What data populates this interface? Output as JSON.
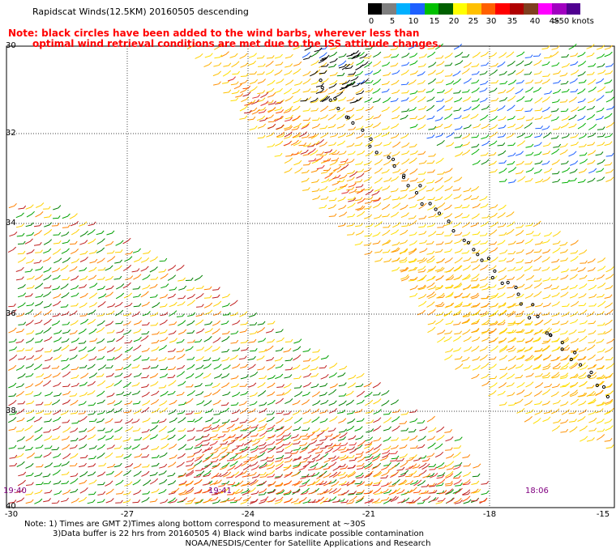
{
  "header": {
    "title": "Rapidscat Winds(12.5KM) 20160505 descending",
    "note_line1": "Note: black circles have been added to the wind barbs, wherever less than",
    "note_line2": "optimal wind retrieval conditions are met due to the ISS attitude changes."
  },
  "legend": {
    "colors": [
      "#000000",
      "#7f7f7f",
      "#00b0ff",
      "#1e60ff",
      "#00c000",
      "#006000",
      "#ffff00",
      "#ffc000",
      "#ff6000",
      "#ff0000",
      "#b00000",
      "#7f3f1f",
      "#ff00ff",
      "#a000c0",
      "#500090"
    ],
    "labels": [
      "0",
      "5",
      "10",
      "15",
      "20",
      "25",
      "30",
      "35",
      "40",
      "45",
      ">50 knots"
    ]
  },
  "axes": {
    "lat_labels": [
      "30",
      "32",
      "34",
      "36",
      "38",
      "40"
    ],
    "lon_labels": [
      "-30",
      "-27",
      "-24",
      "-21",
      "-18",
      "-15"
    ]
  },
  "time_labels": [
    "19:40",
    "19:41",
    "18:06"
  ],
  "footer": {
    "line1": "Note: 1) Times are GMT 2)Times along bottom correspond to measurement at ~30S",
    "line2": "3)Data buffer is 22 hrs from 20160505 4) Black wind barbs indicate possible contamination",
    "credit": "NOAA/NESDIS/Center for Satellite Applications and Research"
  }
}
